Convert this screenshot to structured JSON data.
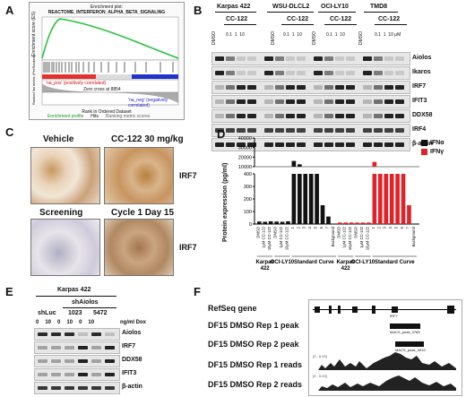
{
  "panelA": {
    "label": "A",
    "title_line1": "Enrichment plot:",
    "title_line2": "REACTOME_INTERFERON_ALPHA_BETA_SIGNALING",
    "yaxis_es": "Enrichment score (ES)",
    "yaxis_rank": "Ranked list metric (PreRanked)",
    "pos_label": "'na_pos' (positively correlated)",
    "zero_label": "Zero cross at 8854",
    "neg_label": "'na_neg' (negatively correlated)",
    "xaxis": "Rank in Ordered Dataset",
    "xticks": [
      "0",
      "2,500",
      "5,000",
      "7,500",
      "10,000",
      "12,500",
      "15,000",
      "17,500",
      "20,000"
    ],
    "legend": [
      "Enrichment profile",
      "Hits",
      "Ranking metric scores"
    ]
  },
  "panelB": {
    "label": "B",
    "cell_lines": [
      "Karpas 422",
      "WSU-DLCL2",
      "OCI-LY10",
      "TMD8"
    ],
    "drug": "CC-122",
    "dmso": "DMSO",
    "doses": [
      "0.1",
      "1",
      "10"
    ],
    "unit": "μM",
    "proteins": [
      "Aiolos",
      "Ikaros",
      "IRF7",
      "IFIT3",
      "DDX58",
      "IRF4",
      "β-actin"
    ]
  },
  "panelC": {
    "label": "C",
    "titles": [
      "Vehicle",
      "CC-122 30 mg/kg",
      "Screening",
      "Cycle 1 Day 15"
    ],
    "stain": "IRF7"
  },
  "panelD": {
    "label": "D",
    "ylabel": "Protein expression (pg/ml)",
    "legend": [
      {
        "name": "IFNα",
        "color": "#111111"
      },
      {
        "name": "IFNγ",
        "color": "#e0222a"
      }
    ],
    "upper_ticks": [
      "40000",
      "30000",
      "20000",
      "10000"
    ],
    "lower_ticks": [
      "400",
      "300",
      "200",
      "100",
      "0"
    ],
    "xlabels_a": [
      "DMSO",
      "1μM CC-122",
      "10μM CC-122",
      "DMSO",
      "1μM CC-122",
      "10μM CC-122"
    ],
    "std": [
      "1",
      "2",
      "3",
      "4",
      "5",
      "6",
      "7",
      "Background"
    ],
    "groups": [
      "Karpas 422",
      "OCI-LY10",
      "Standard Curve",
      "Karpas 422",
      "OCI-LY10",
      "Standard Curve"
    ]
  },
  "chart_data": {
    "type": "bar",
    "ylabel": "Protein expression (pg/ml)",
    "axis_break": [
      400,
      10000
    ],
    "categories": [
      "DMSO",
      "1μM CC-122",
      "10μM CC-122",
      "DMSO",
      "1μM CC-122",
      "10μM CC-122",
      "1",
      "2",
      "3",
      "4",
      "5",
      "6",
      "7",
      "Background"
    ],
    "series": [
      {
        "name": "IFNα",
        "color": "#111111",
        "values": [
          20,
          18,
          22,
          20,
          18,
          22,
          16000,
          12500,
          9000,
          400,
          400,
          150,
          60,
          0
        ]
      },
      {
        "name": "IFNγ",
        "color": "#e0222a",
        "values": [
          12,
          12,
          12,
          12,
          12,
          12,
          15000,
          10000,
          5000,
          400,
          400,
          400,
          150,
          0
        ]
      }
    ]
  },
  "panelE": {
    "label": "E",
    "cell_line": "Karpas 422",
    "shaiolos": "shAiolos",
    "groups": [
      "shLuc",
      "1023",
      "5472"
    ],
    "doses": [
      "0",
      "10",
      "0",
      "10",
      "0",
      "10"
    ],
    "unit": "ng/ml Dox",
    "proteins": [
      "Aiolos",
      "IRF7",
      "DDX58",
      "IFIT3",
      "β-actin"
    ]
  },
  "panelF": {
    "label": "F",
    "tracks": [
      "RefSeq gene",
      "DF15 DMSO Rep 1 peak",
      "DF15 DMSO Rep 2 peak",
      "DF15 DMSO Rep 1 reads",
      "DF15 DMSO Rep 2 reads"
    ],
    "gene": "IRF7",
    "peak1": "MACS_peak_3765",
    "peak2": "MACS_peak_3019",
    "scale1": "[0 - 8.00]",
    "scale2": "[0 - 5.00]"
  }
}
